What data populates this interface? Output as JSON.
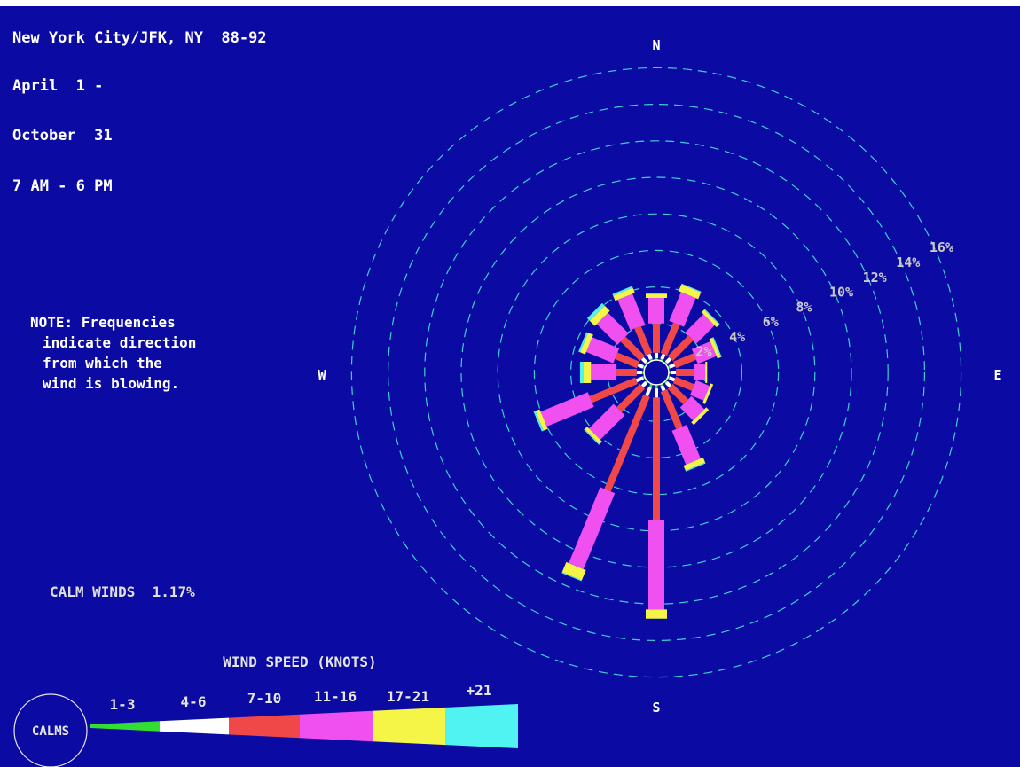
{
  "header": {
    "station": "New York City/JFK, NY  88-92",
    "start_date": "April  1 -",
    "end_date": "October  31",
    "hours": "7 AM - 6 PM"
  },
  "note": {
    "lines": [
      "NOTE: Frequencies",
      "indicate direction",
      "from which the",
      "wind is blowing."
    ]
  },
  "calm_winds": "CALM WINDS  1.17%",
  "compass": {
    "north": "N",
    "south": "S",
    "east": "E",
    "west": "W"
  },
  "colors": {
    "background": "#0b0ba3",
    "ring": "#3fcfcf",
    "label": "#c9c9c9",
    "speed_classes": [
      "#33dd33",
      "#ffffff",
      "#f04848",
      "#f050f0",
      "#f5f548",
      "#50f2f2"
    ]
  },
  "legend": {
    "title": "WIND SPEED (KNOTS)",
    "calms_label": "CALMS",
    "classes": [
      "1-3",
      "4-6",
      "7-10",
      "11-16",
      "17-21",
      "+21"
    ]
  },
  "chart_data": {
    "type": "wind rose",
    "ring_labels": [
      "2%",
      "4%",
      "6%",
      "8%",
      "10%",
      "12%",
      "14%",
      "16%"
    ],
    "ring_values": [
      2,
      4,
      6,
      8,
      10,
      12,
      14,
      16
    ],
    "speed_classes": [
      "1-3",
      "4-6",
      "7-10",
      "11-16",
      "17-21",
      "+21"
    ],
    "calm_percent": 1.17,
    "directions": [
      {
        "dir": 0,
        "values": [
          0.1,
          0.3,
          1.6,
          1.4,
          0.2,
          0.05
        ]
      },
      {
        "dir": 22.5,
        "values": [
          0.1,
          0.3,
          1.8,
          1.7,
          0.4,
          0.05
        ]
      },
      {
        "dir": 45,
        "values": [
          0.1,
          0.3,
          1.6,
          1.4,
          0.2,
          0.05
        ]
      },
      {
        "dir": 67.5,
        "values": [
          0.1,
          0.3,
          1.2,
          1.1,
          0.2,
          0.05
        ]
      },
      {
        "dir": 90,
        "values": [
          0.1,
          0.3,
          1.0,
          0.6,
          0.1,
          0.0
        ]
      },
      {
        "dir": 112.5,
        "values": [
          0.1,
          0.3,
          1.1,
          0.8,
          0.15,
          0.0
        ]
      },
      {
        "dir": 135,
        "values": [
          0.1,
          0.3,
          1.2,
          1.0,
          0.2,
          0.0
        ]
      },
      {
        "dir": 157.5,
        "values": [
          0.1,
          0.3,
          2.2,
          2.0,
          0.3,
          0.05
        ]
      },
      {
        "dir": 180,
        "values": [
          0.2,
          0.5,
          6.7,
          4.9,
          0.5,
          0.0
        ]
      },
      {
        "dir": 202.5,
        "values": [
          0.2,
          0.5,
          5.6,
          4.5,
          0.6,
          0.05
        ]
      },
      {
        "dir": 225,
        "values": [
          0.1,
          0.3,
          1.8,
          1.9,
          0.2,
          0.05
        ]
      },
      {
        "dir": 247.5,
        "values": [
          0.1,
          0.4,
          2.7,
          2.8,
          0.25,
          0.1
        ]
      },
      {
        "dir": 270,
        "values": [
          0.1,
          0.3,
          1.1,
          1.4,
          0.4,
          0.2
        ]
      },
      {
        "dir": 292.5,
        "values": [
          0.1,
          0.3,
          1.3,
          1.6,
          0.3,
          0.1
        ]
      },
      {
        "dir": 315,
        "values": [
          0.1,
          0.3,
          1.5,
          1.6,
          0.4,
          0.2
        ]
      },
      {
        "dir": 337.5,
        "values": [
          0.1,
          0.3,
          1.6,
          1.8,
          0.3,
          0.1
        ]
      }
    ]
  }
}
